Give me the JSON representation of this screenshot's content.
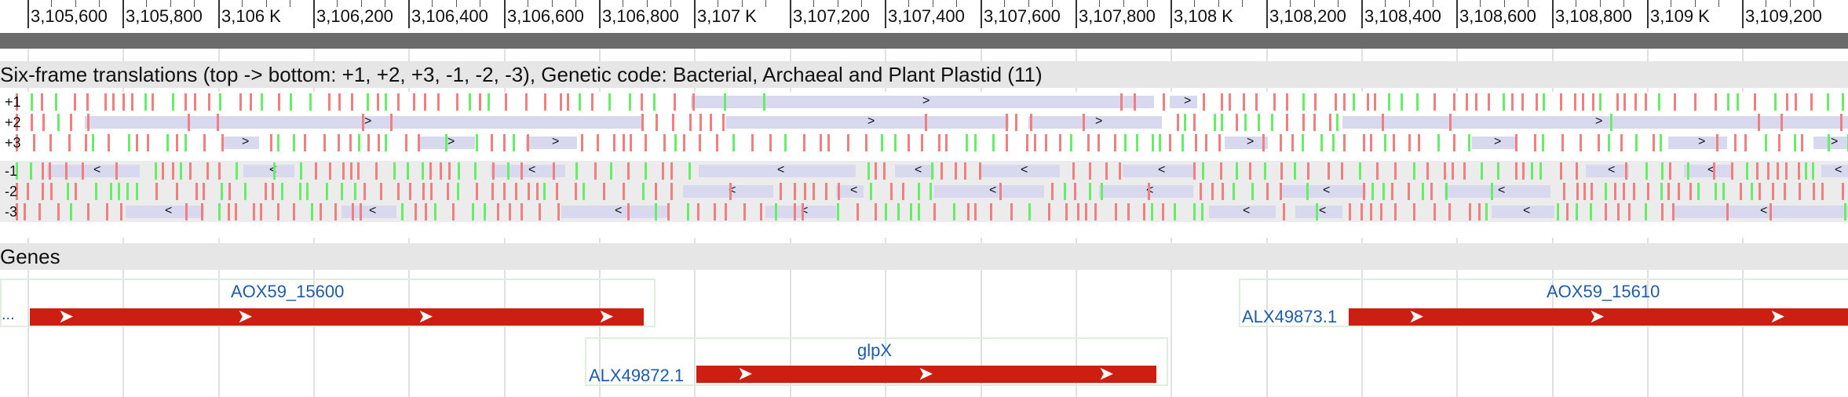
{
  "ruler": {
    "ticks": [
      "3,105,600",
      "3,105,800",
      "3,106 K",
      "3,106,200",
      "3,106,400",
      "3,106,600",
      "3,106,800",
      "3,107 K",
      "3,107,200",
      "3,107,400",
      "3,107,600",
      "3,107,800",
      "3,108 K",
      "3,108,200",
      "3,108,400",
      "3,108,600",
      "3,108,800",
      "3,109 K",
      "3,109,200"
    ]
  },
  "translations": {
    "header": "Six-frame translations (top -> bottom: +1, +2, +3, -1, -2, -3), Genetic code: Bacterial, Archaeal and Plant Plastid (11)",
    "frames": [
      {
        "label": "+1",
        "direction": ">",
        "orfs": [
          [
            880,
            1470
          ],
          [
            1490,
            1525
          ]
        ]
      },
      {
        "label": "+2",
        "direction": ">",
        "orfs": [
          [
            108,
            820
          ],
          [
            925,
            1285
          ],
          [
            1310,
            1480
          ],
          [
            1710,
            2354
          ]
        ]
      },
      {
        "label": "+3",
        "direction": ">",
        "orfs": [
          [
            285,
            330
          ],
          [
            535,
            605
          ],
          [
            670,
            735
          ],
          [
            1560,
            1615
          ],
          [
            1875,
            1930
          ],
          [
            2125,
            2200
          ],
          [
            2310,
            2354
          ]
        ]
      },
      {
        "label": "-1",
        "direction": "<",
        "orfs": [
          [
            60,
            178
          ],
          [
            310,
            375
          ],
          [
            625,
            720
          ],
          [
            890,
            1090
          ],
          [
            1140,
            1190
          ],
          [
            1250,
            1350
          ],
          [
            1430,
            1520
          ],
          [
            2020,
            2075
          ],
          [
            2145,
            2205
          ],
          [
            2320,
            2354
          ]
        ]
      },
      {
        "label": "-2",
        "direction": "<",
        "orfs": [
          [
            870,
            985
          ],
          [
            1065,
            1100
          ],
          [
            1190,
            1330
          ],
          [
            1400,
            1520
          ],
          [
            1630,
            1740
          ],
          [
            1840,
            1975
          ]
        ]
      },
      {
        "label": "-3",
        "direction": "<",
        "orfs": [
          [
            160,
            260
          ],
          [
            435,
            505
          ],
          [
            715,
            850
          ],
          [
            975,
            1065
          ],
          [
            1540,
            1625
          ],
          [
            1650,
            1710
          ],
          [
            1900,
            1980
          ],
          [
            2130,
            2354
          ]
        ]
      }
    ]
  },
  "genes": {
    "header": "Genes",
    "items": [
      {
        "name": "AOX59_15600",
        "left_label": "...",
        "cds_label": ""
      },
      {
        "name": "glpX",
        "left_label": "",
        "cds_label": "ALX49872.1"
      },
      {
        "name": "AOX59_15610",
        "left_label": "",
        "cds_label": "ALX49873.1"
      }
    ]
  },
  "colors": {
    "cds": "#cc1f12",
    "orf": "#d8d8ee",
    "stop_codon": "#f08080",
    "start_codon": "#66ee66",
    "gene_name": "#1f5ca8"
  }
}
